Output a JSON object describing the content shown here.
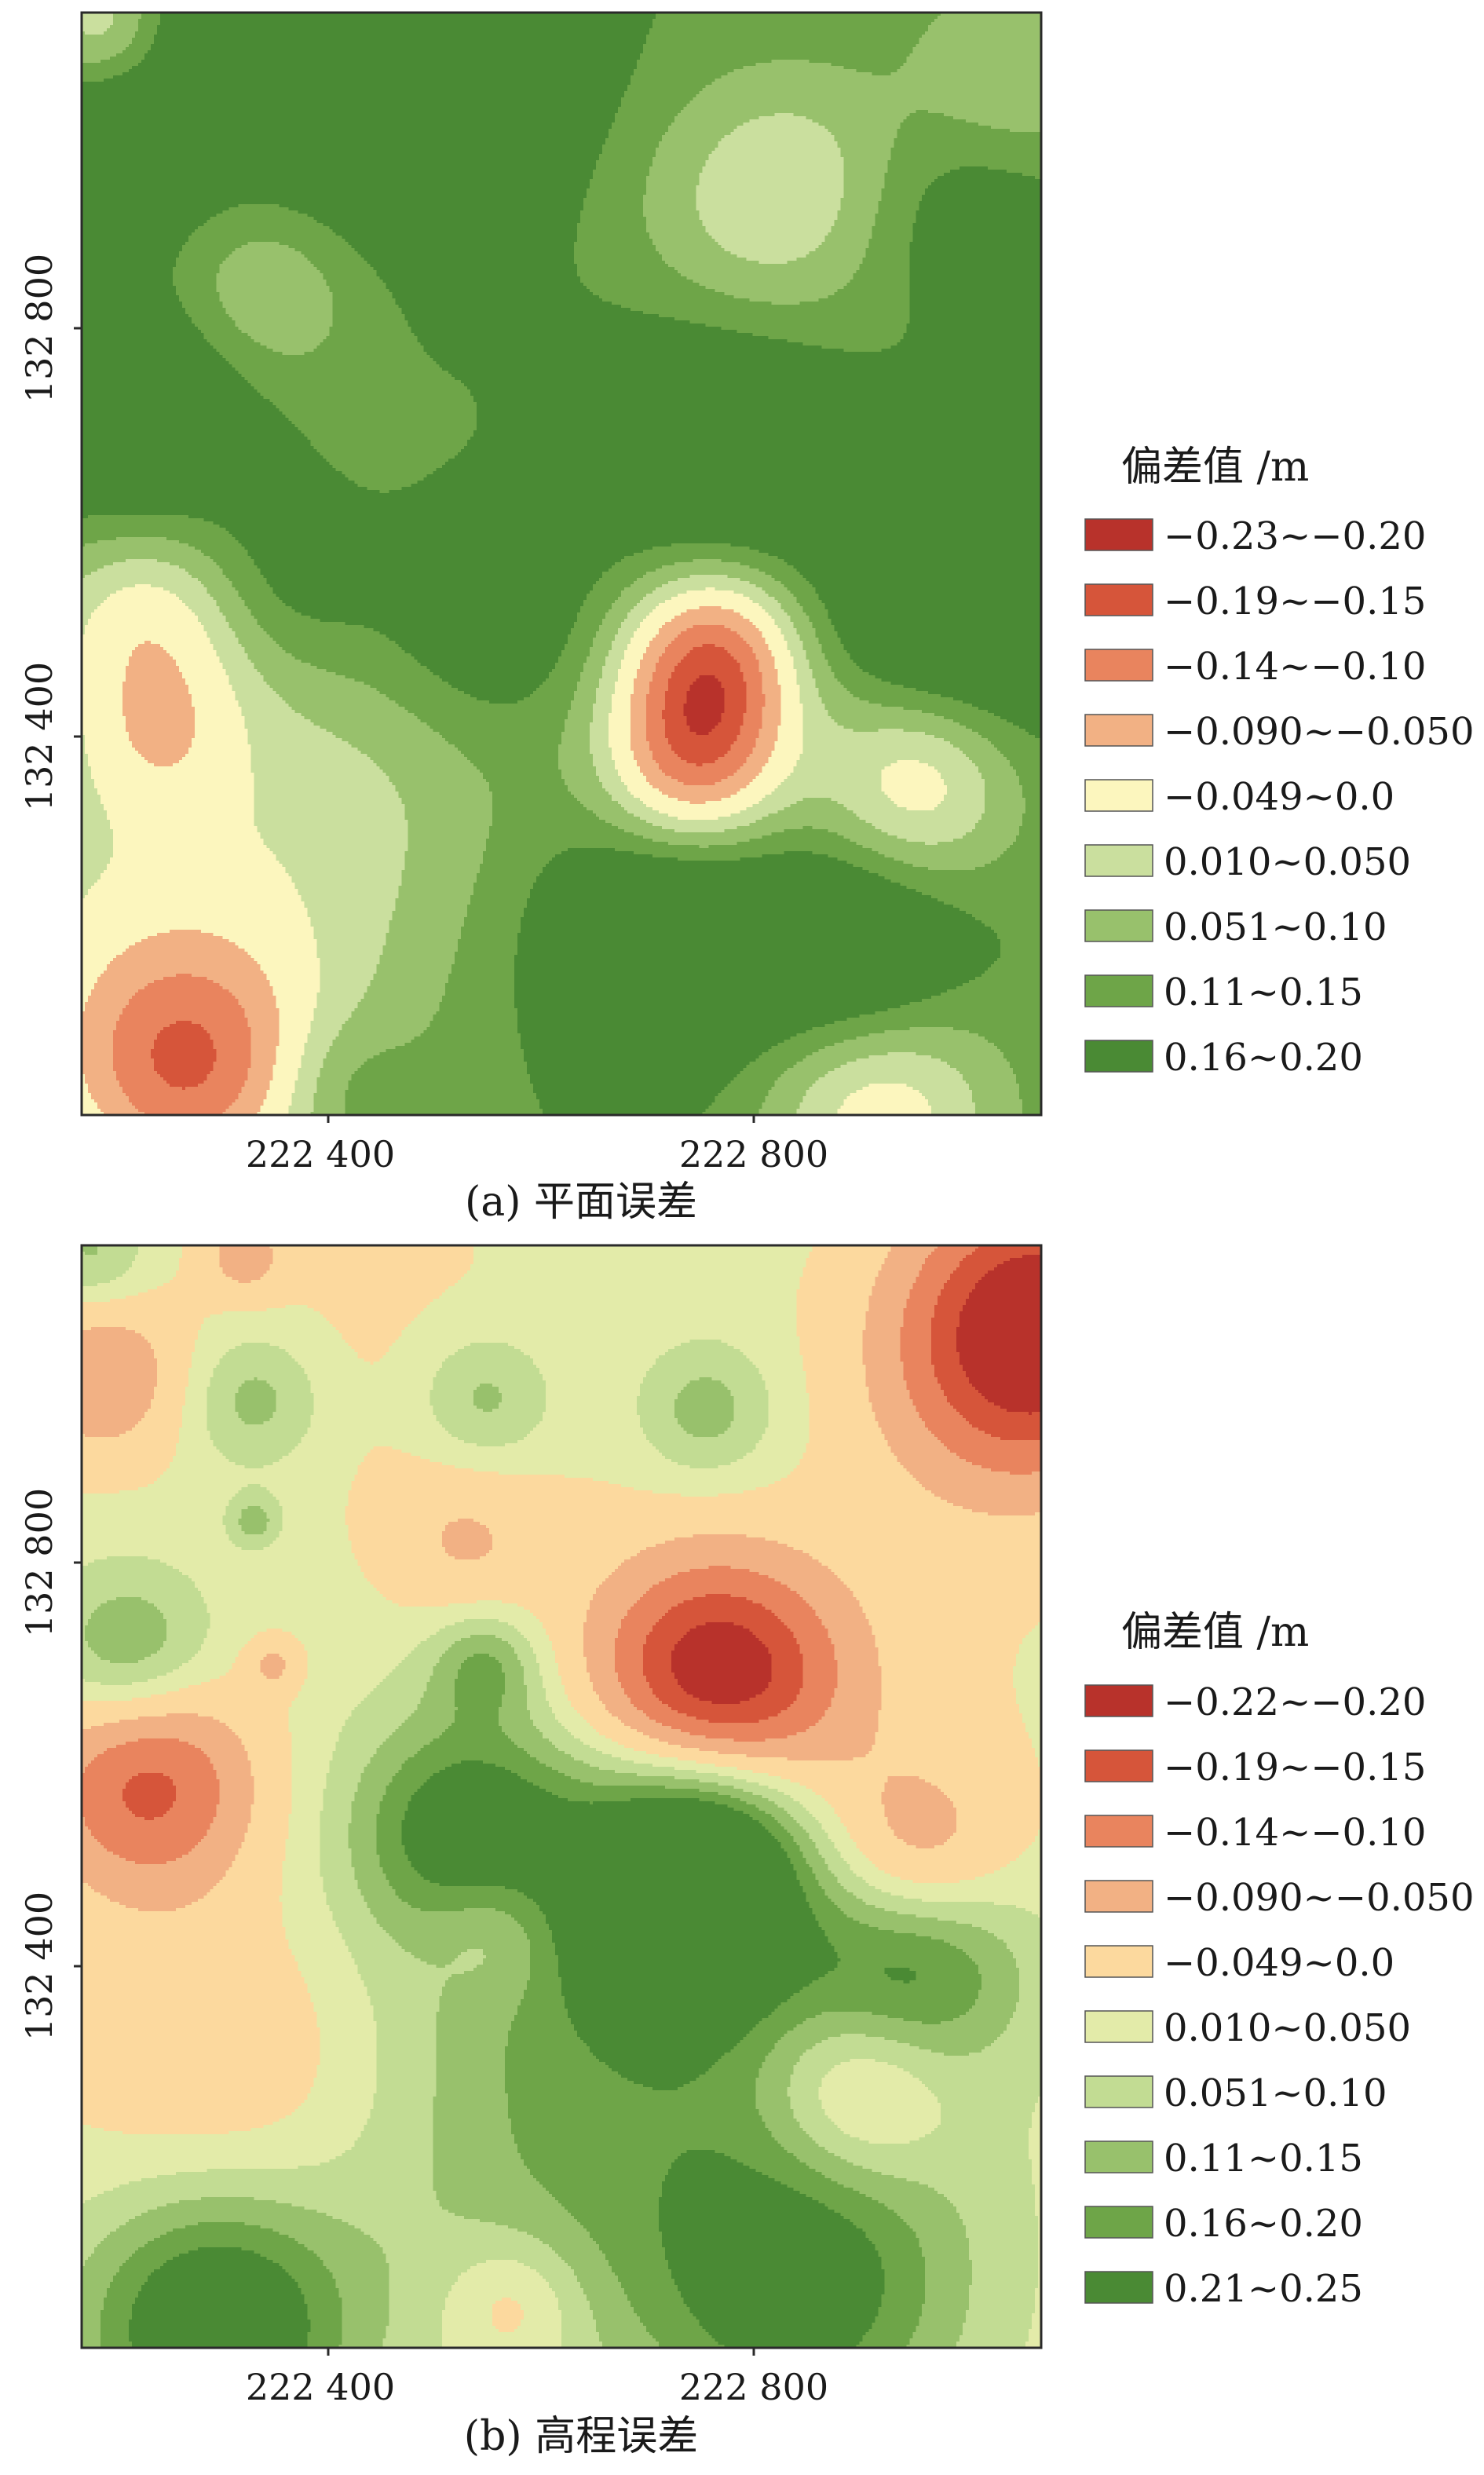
{
  "chart_data": [
    {
      "type": "heatmap",
      "caption": "(a) 平面误差",
      "x_ticks": [
        "222 400",
        "222 800"
      ],
      "y_ticks": [
        "132 800",
        "132 400"
      ],
      "legend": {
        "title": "偏差值 /m",
        "classes": [
          {
            "label": "−0.23~−0.20",
            "color": "#b8322b"
          },
          {
            "label": "−0.19~−0.15",
            "color": "#d6553a"
          },
          {
            "label": "−0.14~−0.10",
            "color": "#e9845e"
          },
          {
            "label": "−0.090~−0.050",
            "color": "#f2b184"
          },
          {
            "label": "−0.049~0.0",
            "color": "#fcf6be"
          },
          {
            "label": "0.010~0.050",
            "color": "#cadf9e"
          },
          {
            "label": "0.051~0.10",
            "color": "#98c16c"
          },
          {
            "label": "0.11~0.15",
            "color": "#6ea548"
          },
          {
            "label": "0.16~0.20",
            "color": "#4a8a34"
          }
        ]
      },
      "field": {
        "background": 4.7,
        "sources": [
          {
            "x": 0.02,
            "y": 0.01,
            "peak": -4.0,
            "s": 0.05
          },
          {
            "x": 0.15,
            "y": 0.03,
            "peak": 1.8,
            "s": 0.05
          },
          {
            "x": 0.38,
            "y": 0.04,
            "peak": 3.6,
            "s": 0.09
          },
          {
            "x": 0.24,
            "y": 0.09,
            "peak": 2.5,
            "s": 0.16
          },
          {
            "x": 0.03,
            "y": 0.13,
            "peak": 2.6,
            "s": 0.06
          },
          {
            "x": 0.97,
            "y": 0.06,
            "peak": -2.8,
            "s": 0.08
          },
          {
            "x": 0.71,
            "y": 0.18,
            "peak": -3.5,
            "s": 0.1
          },
          {
            "x": 0.76,
            "y": 0.13,
            "peak": -0.9,
            "s": 0.07
          },
          {
            "x": 0.93,
            "y": 0.18,
            "peak": 2.0,
            "s": 0.08
          },
          {
            "x": 0.19,
            "y": 0.25,
            "peak": -3.8,
            "s": 0.08
          },
          {
            "x": 0.06,
            "y": 0.37,
            "peak": 3.9,
            "s": 0.09
          },
          {
            "x": 0.66,
            "y": 0.4,
            "peak": 3.9,
            "s": 0.1
          },
          {
            "x": 0.21,
            "y": 0.52,
            "peak": 2.4,
            "s": 0.07
          },
          {
            "x": 0.42,
            "y": 0.55,
            "peak": 3.5,
            "s": 0.09
          },
          {
            "x": 0.9,
            "y": 0.58,
            "peak": 4.2,
            "s": 0.1
          },
          {
            "x": 0.07,
            "y": 0.55,
            "peak": -4.5,
            "s": 0.08
          },
          {
            "x": 0.08,
            "y": 0.66,
            "peak": -2.5,
            "s": 0.06
          },
          {
            "x": 0.66,
            "y": 0.58,
            "peak": -8.0,
            "s": 0.07
          },
          {
            "x": 0.64,
            "y": 0.68,
            "peak": -8.0,
            "s": 0.07
          },
          {
            "x": 0.87,
            "y": 0.69,
            "peak": -6.5,
            "s": 0.08
          },
          {
            "x": 0.38,
            "y": 0.7,
            "peak": -3.0,
            "s": 0.2
          },
          {
            "x": 0.05,
            "y": 0.85,
            "peak": -3.5,
            "s": 0.18
          },
          {
            "x": 0.11,
            "y": 0.96,
            "peak": -6.5,
            "s": 0.09
          },
          {
            "x": 0.83,
            "y": 0.99,
            "peak": -5.5,
            "s": 0.09
          },
          {
            "x": 0.61,
            "y": 0.85,
            "peak": 3.0,
            "s": 0.07
          },
          {
            "x": 0.81,
            "y": 0.86,
            "peak": 3.6,
            "s": 0.08
          },
          {
            "x": 0.27,
            "y": 0.97,
            "peak": 1.6,
            "s": 0.05
          },
          {
            "x": 0.58,
            "y": 0.8,
            "peak": 3.2,
            "s": 0.15
          }
        ],
        "breaks": [
          -5.8,
          -4.4,
          -2.8,
          -1.2,
          0.6,
          2.0,
          3.4,
          4.8
        ],
        "band_colors": [
          "#b8322b",
          "#d6553a",
          "#e9845e",
          "#f2b184",
          "#fcf6be",
          "#cadf9e",
          "#98c16c",
          "#6ea548",
          "#4a8a34"
        ]
      }
    },
    {
      "type": "heatmap",
      "caption": "(b) 高程误差",
      "x_ticks": [
        "222 400",
        "222 800"
      ],
      "y_ticks": [
        "132 800",
        "132 400"
      ],
      "legend": {
        "title": "偏差值 /m",
        "classes": [
          {
            "label": "−0.22~−0.20",
            "color": "#b8322b"
          },
          {
            "label": "−0.19~−0.15",
            "color": "#d6553a"
          },
          {
            "label": "−0.14~−0.10",
            "color": "#e9845e"
          },
          {
            "label": "−0.090~−0.050",
            "color": "#f2b184"
          },
          {
            "label": "−0.049~0.0",
            "color": "#fcd99e"
          },
          {
            "label": "0.010~0.050",
            "color": "#e3eba9"
          },
          {
            "label": "0.051~0.10",
            "color": "#c2dc93"
          },
          {
            "label": "0.11~0.15",
            "color": "#98c16c"
          },
          {
            "label": "0.16~0.20",
            "color": "#6ea548"
          },
          {
            "label": "0.21~0.25",
            "color": "#4a8a34"
          }
        ]
      },
      "field": {
        "background": 0.4,
        "sources": [
          {
            "x": 0.01,
            "y": 0.01,
            "peak": 2.0,
            "s": 0.04
          },
          {
            "x": 0.17,
            "y": 0.01,
            "peak": -2.2,
            "s": 0.03
          },
          {
            "x": 0.3,
            "y": 0.07,
            "peak": -0.6,
            "s": 0.15
          },
          {
            "x": 0.02,
            "y": 0.12,
            "peak": -3.0,
            "s": 0.06
          },
          {
            "x": 1.0,
            "y": 0.07,
            "peak": -7.0,
            "s": 0.1
          },
          {
            "x": 0.95,
            "y": 0.14,
            "peak": -1.5,
            "s": 0.1
          },
          {
            "x": 0.18,
            "y": 0.14,
            "peak": 2.3,
            "s": 0.05
          },
          {
            "x": 0.42,
            "y": 0.14,
            "peak": 2.2,
            "s": 0.05
          },
          {
            "x": 0.65,
            "y": 0.15,
            "peak": 2.2,
            "s": 0.05
          },
          {
            "x": 0.18,
            "y": 0.25,
            "peak": 2.2,
            "s": 0.02
          },
          {
            "x": 0.4,
            "y": 0.27,
            "peak": -1.8,
            "s": 0.06
          },
          {
            "x": 0.7,
            "y": 0.24,
            "peak": 0.3,
            "s": 0.1
          },
          {
            "x": 0.05,
            "y": 0.37,
            "peak": 3.0,
            "s": 0.06
          },
          {
            "x": 0.2,
            "y": 0.38,
            "peak": -2.0,
            "s": 0.02
          },
          {
            "x": 0.42,
            "y": 0.38,
            "peak": 2.6,
            "s": 0.04
          },
          {
            "x": 0.66,
            "y": 0.4,
            "peak": -7.5,
            "s": 0.09
          },
          {
            "x": 0.7,
            "y": 0.42,
            "peak": -1.2,
            "s": 0.18
          },
          {
            "x": 0.07,
            "y": 0.49,
            "peak": -5.0,
            "s": 0.08
          },
          {
            "x": 0.4,
            "y": 0.53,
            "peak": 3.8,
            "s": 0.08
          },
          {
            "x": 0.65,
            "y": 0.52,
            "peak": 4.5,
            "s": 0.08
          },
          {
            "x": 0.63,
            "y": 0.61,
            "peak": 4.5,
            "s": 0.08
          },
          {
            "x": 0.55,
            "y": 0.59,
            "peak": 2.6,
            "s": 0.17
          },
          {
            "x": 0.87,
            "y": 0.64,
            "peak": 4.0,
            "s": 0.08
          },
          {
            "x": 0.87,
            "y": 0.56,
            "peak": -3.6,
            "s": 0.07
          },
          {
            "x": 0.43,
            "y": 0.62,
            "peak": -2.0,
            "s": 0.05
          },
          {
            "x": 0.15,
            "y": 0.74,
            "peak": -1.6,
            "s": 0.12
          },
          {
            "x": 0.81,
            "y": 0.77,
            "peak": -3.5,
            "s": 0.07
          },
          {
            "x": 0.8,
            "y": 0.75,
            "peak": 1.5,
            "s": 0.12
          },
          {
            "x": 0.75,
            "y": 0.95,
            "peak": 4.2,
            "s": 0.12
          },
          {
            "x": 0.14,
            "y": 0.98,
            "peak": 5.5,
            "s": 0.1
          },
          {
            "x": 0.5,
            "y": 0.84,
            "peak": 2.0,
            "s": 0.15
          },
          {
            "x": 0.45,
            "y": 0.96,
            "peak": -2.0,
            "s": 0.05
          }
        ],
        "breaks": [
          -5.5,
          -4.2,
          -2.8,
          -1.4,
          0.0,
          1.0,
          2.0,
          3.0,
          4.0
        ],
        "band_colors": [
          "#b8322b",
          "#d6553a",
          "#e9845e",
          "#f2b184",
          "#fcd99e",
          "#e3eba9",
          "#c2dc93",
          "#98c16c",
          "#6ea548",
          "#4a8a34"
        ]
      }
    }
  ]
}
